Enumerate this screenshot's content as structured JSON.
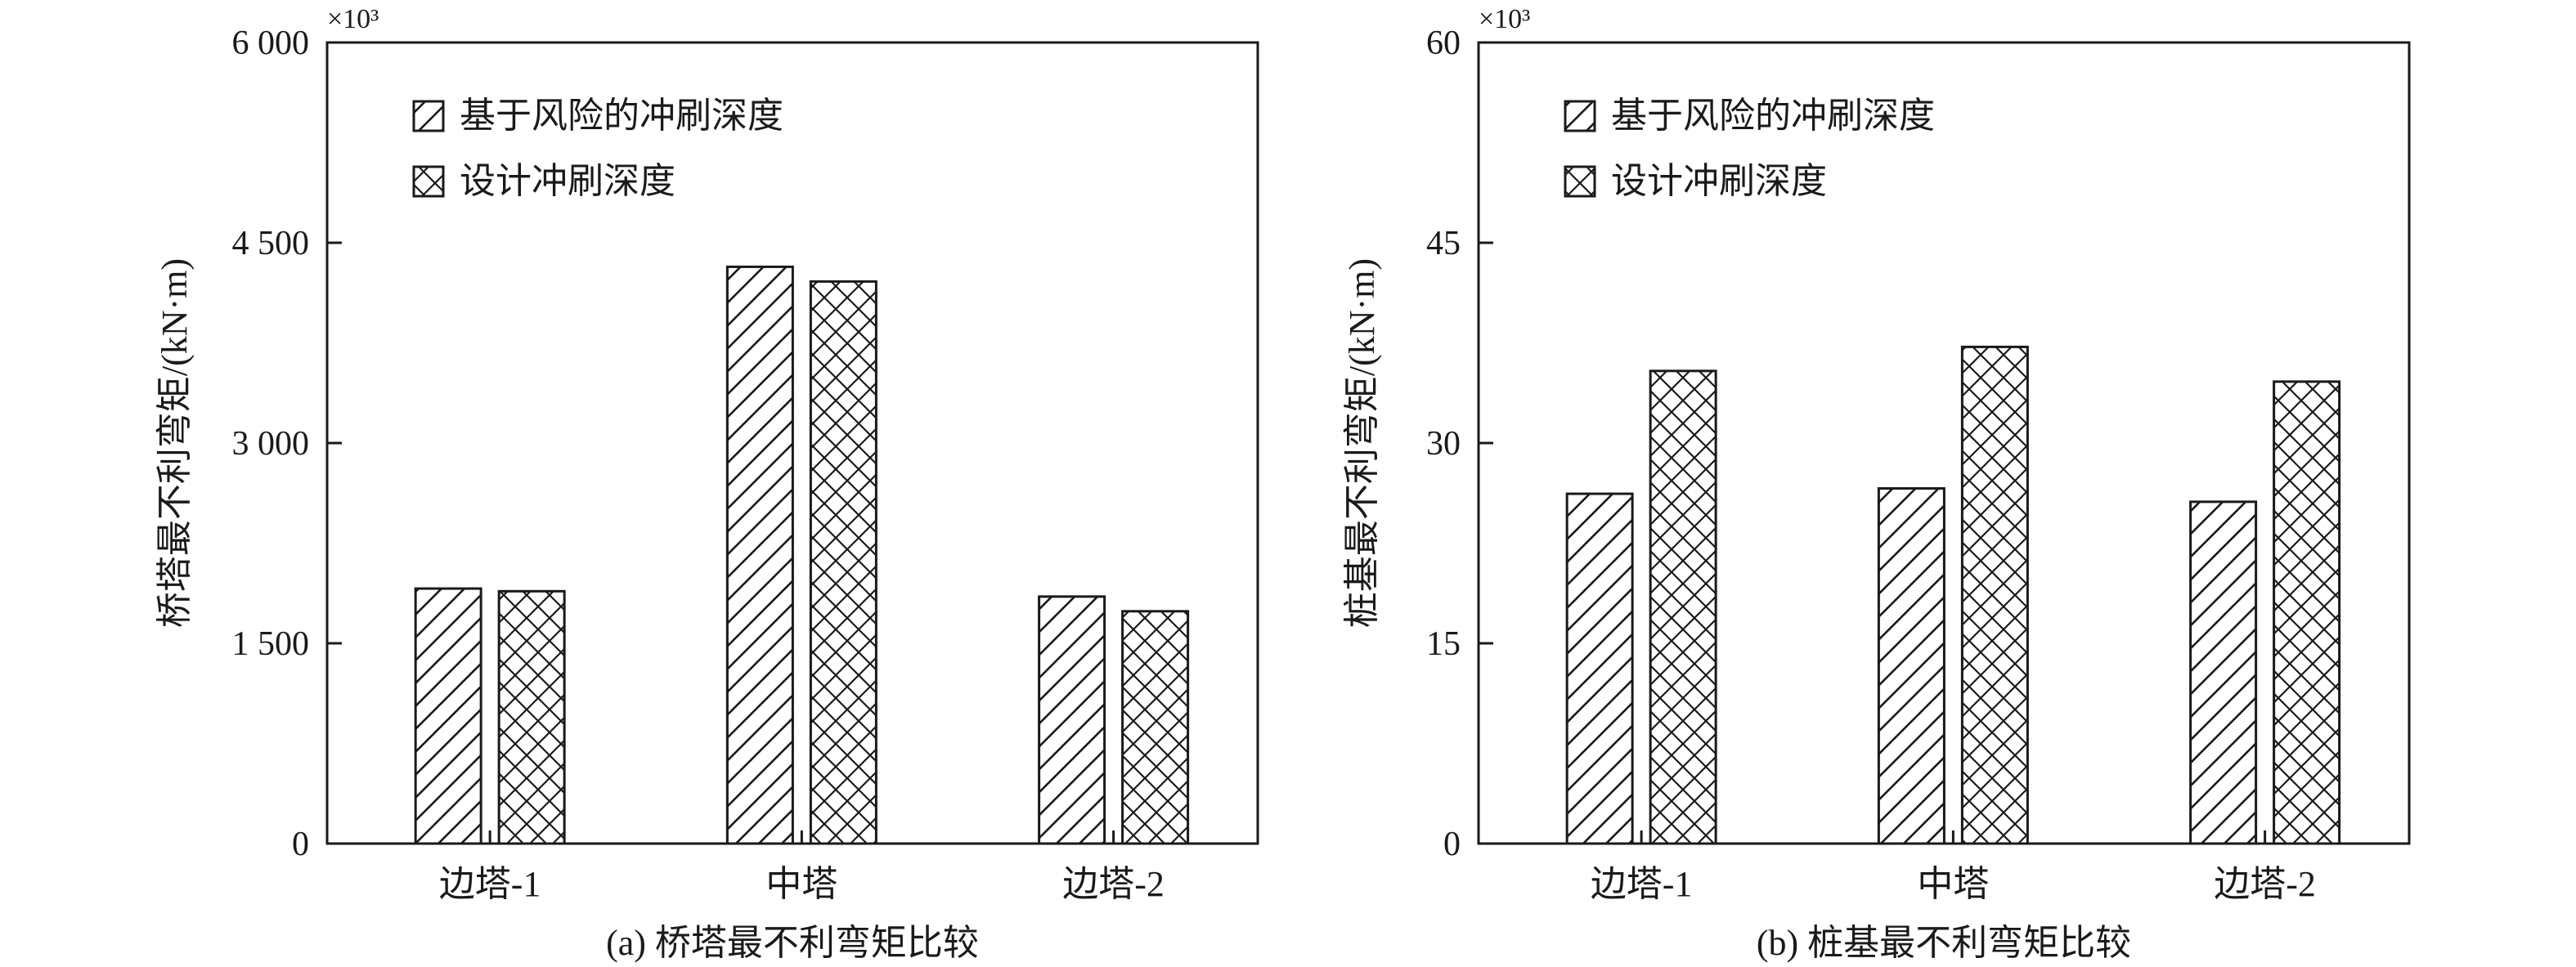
{
  "chart_data": [
    {
      "type": "bar",
      "title": "(a) 桥塔最不利弯矩比较",
      "categories": [
        "边塔-1",
        "中塔",
        "边塔-2"
      ],
      "series": [
        {
          "name": "基于风险的冲刷深度",
          "values": [
            1910,
            4320,
            1850
          ],
          "pattern": "hatch"
        },
        {
          "name": "设计冲刷深度",
          "values": [
            1890,
            4210,
            1740
          ],
          "pattern": "crosshatch"
        }
      ],
      "xlabel": "",
      "ylabel": "桥塔最不利弯矩/(kN·m)",
      "multiplier": "×10³",
      "ylim": [
        0,
        6000
      ],
      "yticks": [
        0,
        1500,
        3000,
        4500,
        6000
      ],
      "ytick_labels": [
        "0",
        "1 500",
        "3 000",
        "4 500",
        "6 000"
      ],
      "grid": false,
      "legend_position": "top-left"
    },
    {
      "type": "bar",
      "title": "(b) 桩基最不利弯矩比较",
      "categories": [
        "边塔-1",
        "中塔",
        "边塔-2"
      ],
      "series": [
        {
          "name": "基于风险的冲刷深度",
          "values": [
            26.2,
            26.6,
            25.6
          ],
          "pattern": "hatch"
        },
        {
          "name": "设计冲刷深度",
          "values": [
            35.4,
            37.2,
            34.6
          ],
          "pattern": "crosshatch"
        }
      ],
      "xlabel": "",
      "ylabel": "桩基最不利弯矩/(kN·m)",
      "multiplier": "×10³",
      "ylim": [
        0,
        60
      ],
      "yticks": [
        0,
        15,
        30,
        45,
        60
      ],
      "ytick_labels": [
        "0",
        "15",
        "30",
        "45",
        "60"
      ],
      "grid": false,
      "legend_position": "top-left"
    }
  ]
}
